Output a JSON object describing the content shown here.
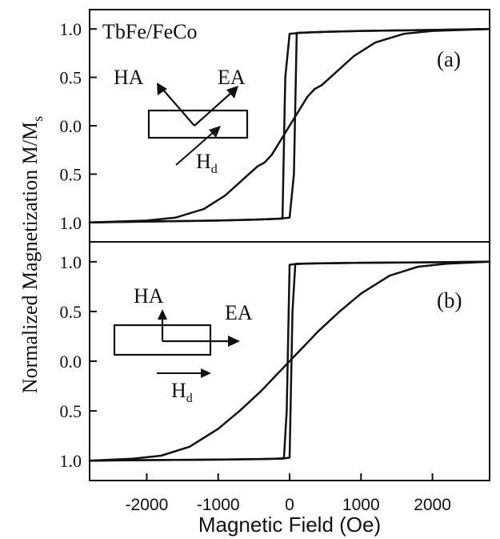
{
  "chart_data": [
    {
      "type": "line",
      "panel_label": "(a)",
      "sample_label": "TbFe/FeCo",
      "xlim": [
        -2800,
        2800
      ],
      "ylim": [
        -1.2,
        1.2
      ],
      "yticks": [
        -1.0,
        -0.5,
        0.0,
        0.5,
        1.0
      ],
      "ytick_labels": [
        "1.0",
        "0.5",
        "0.0",
        "0.5",
        "1.0"
      ],
      "inset": {
        "hard_axis_label": "HA",
        "easy_axis_label": "EA",
        "field_label_main": "H",
        "field_label_sub": "d",
        "field_direction": "oblique"
      },
      "series": [
        {
          "values_x": [
            -2800,
            -2000,
            -1500,
            -1000,
            -500,
            -300,
            -150,
            0,
            60,
            100,
            500,
            1000,
            1500,
            2000,
            2800
          ],
          "values_y": [
            -1.0,
            -0.99,
            -0.985,
            -0.98,
            -0.97,
            -0.965,
            -0.96,
            -0.95,
            -0.5,
            0.96,
            0.97,
            0.98,
            0.985,
            0.99,
            1.0
          ]
        },
        {
          "values_x": [
            2800,
            2000,
            1500,
            1000,
            500,
            300,
            150,
            0,
            -60,
            -100,
            -500,
            -1000,
            -1500,
            -2000,
            -2800
          ],
          "values_y": [
            1.0,
            0.99,
            0.985,
            0.98,
            0.97,
            0.965,
            0.96,
            0.95,
            0.5,
            -0.96,
            -0.97,
            -0.98,
            -0.985,
            -0.99,
            -1.0
          ]
        },
        {
          "values_x": [
            -2800,
            -2000,
            -1600,
            -1200,
            -900,
            -600,
            -450,
            -350,
            -250,
            0,
            250,
            350,
            450,
            600,
            900,
            1200,
            1600,
            2000,
            2800
          ],
          "values_y": [
            -1.0,
            -0.98,
            -0.95,
            -0.86,
            -0.72,
            -0.52,
            -0.42,
            -0.38,
            -0.3,
            0.0,
            0.3,
            0.38,
            0.42,
            0.52,
            0.72,
            0.86,
            0.95,
            0.98,
            1.0
          ]
        }
      ]
    },
    {
      "type": "line",
      "panel_label": "(b)",
      "xlim": [
        -2800,
        2800
      ],
      "ylim": [
        -1.2,
        1.2
      ],
      "yticks": [
        -1.0,
        -0.5,
        0.0,
        0.5,
        1.0
      ],
      "ytick_labels": [
        "1.0",
        "0.5",
        "0.0",
        "0.5",
        "1.0"
      ],
      "xticks": [
        -2000,
        -1000,
        0,
        1000,
        2000
      ],
      "xtick_labels": [
        "-2000",
        "-1000",
        "0",
        "1000",
        "2000"
      ],
      "xlabel": "Magnetic Field (Oe)",
      "inset": {
        "hard_axis_label": "HA",
        "easy_axis_label": "EA",
        "field_label_main": "H",
        "field_label_sub": "d",
        "field_direction": "horizontal"
      },
      "series": [
        {
          "values_x": [
            -2800,
            -2000,
            -1000,
            -400,
            -200,
            -80,
            -40,
            0,
            100,
            500,
            1000,
            2000,
            2800
          ],
          "values_y": [
            -1.0,
            -0.995,
            -0.99,
            -0.985,
            -0.98,
            -0.975,
            -0.5,
            0.97,
            0.98,
            0.985,
            0.99,
            0.995,
            1.0
          ]
        },
        {
          "values_x": [
            2800,
            2000,
            1000,
            400,
            200,
            80,
            40,
            0,
            -100,
            -500,
            -1000,
            -2000,
            -2800
          ],
          "values_y": [
            1.0,
            0.995,
            0.99,
            0.985,
            0.98,
            0.975,
            0.5,
            -0.97,
            -0.98,
            -0.985,
            -0.99,
            -0.995,
            -1.0
          ]
        },
        {
          "values_x": [
            -2800,
            -2200,
            -1800,
            -1400,
            -1000,
            -700,
            -400,
            -200,
            0,
            200,
            400,
            700,
            1000,
            1400,
            1800,
            2200,
            2800
          ],
          "values_y": [
            -1.0,
            -0.98,
            -0.95,
            -0.86,
            -0.68,
            -0.5,
            -0.3,
            -0.15,
            0.0,
            0.15,
            0.3,
            0.5,
            0.68,
            0.86,
            0.95,
            0.98,
            1.0
          ]
        }
      ]
    }
  ],
  "ylabel_main": "Normalized Magnetization M/M",
  "ylabel_sub": "s"
}
